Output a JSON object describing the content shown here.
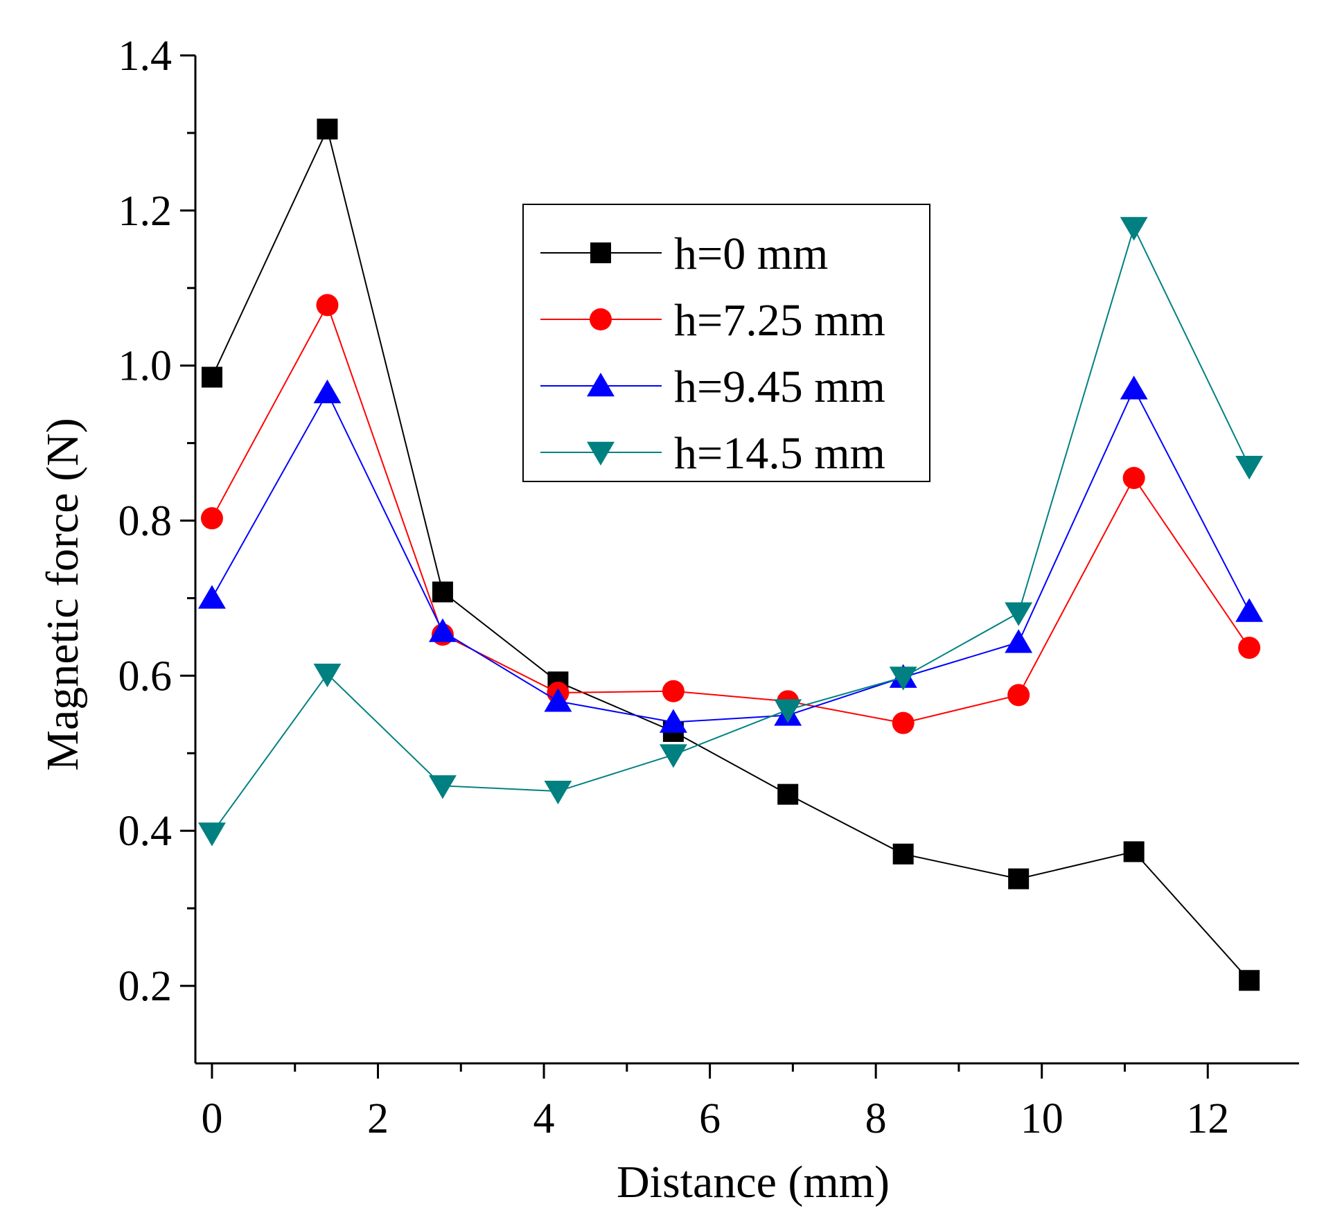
{
  "chart_data": {
    "type": "line",
    "title": "",
    "xlabel": "Distance (mm)",
    "ylabel": "Magnetic force  (N)",
    "xlim": [
      -0.2,
      13.1
    ],
    "ylim": [
      0.1,
      1.4
    ],
    "xticks": [
      0,
      2,
      4,
      6,
      8,
      10,
      12
    ],
    "xtick_labels": [
      "0",
      "2",
      "4",
      "6",
      "8",
      "10",
      "12"
    ],
    "yticks": [
      0.2,
      0.4,
      0.6,
      0.8,
      1.0,
      1.2,
      1.4
    ],
    "ytick_labels": [
      "0.2",
      "0.4",
      "0.6",
      "0.8",
      "1.0",
      "1.2",
      "1.4"
    ],
    "grid": false,
    "legend_position": "top-right",
    "x": [
      0,
      1.39,
      2.78,
      4.17,
      5.56,
      6.94,
      8.33,
      9.72,
      11.11,
      12.5
    ],
    "series": [
      {
        "name": "h=0 mm",
        "color": "#000000",
        "marker": "square",
        "values": [
          0.985,
          1.305,
          0.708,
          0.592,
          0.528,
          0.447,
          0.37,
          0.338,
          0.373,
          0.207
        ]
      },
      {
        "name": "h=7.25 mm",
        "color": "#ff0000",
        "marker": "circle",
        "values": [
          0.803,
          1.078,
          0.653,
          0.578,
          0.58,
          0.567,
          0.539,
          0.575,
          0.855,
          0.636
        ]
      },
      {
        "name": "h=9.45 mm",
        "color": "#0000ff",
        "marker": "triangle-up",
        "values": [
          0.7,
          0.965,
          0.657,
          0.567,
          0.54,
          0.549,
          0.598,
          0.643,
          0.97,
          0.683
        ]
      },
      {
        "name": "h=14.5 mm",
        "color": "#008080",
        "marker": "triangle-down",
        "values": [
          0.397,
          0.602,
          0.458,
          0.451,
          0.498,
          0.556,
          0.598,
          0.681,
          1.178,
          0.87
        ]
      }
    ]
  }
}
